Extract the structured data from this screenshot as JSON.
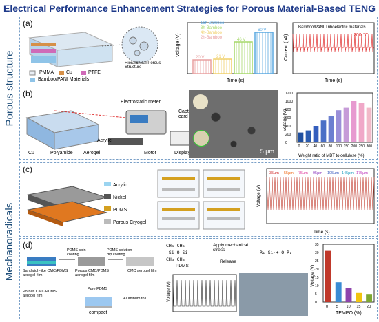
{
  "header": {
    "title": "Electrical Performance Enhancement Strategies for Porous Material-Based TENG"
  },
  "sections": {
    "porous": "Porous structure",
    "mech": "Mechanoradicals"
  },
  "panel_a": {
    "label": "(a)",
    "legend": [
      "PMMA",
      "Cu",
      "PTFE",
      "Bamboo/PANI Materials"
    ],
    "hier": "Hierarchical Porous Structure",
    "bar_ylabel": "Voltage (V)",
    "bar_xlabel": "Time (s)",
    "bar_legend": [
      "16h-Bamboo",
      "8h-Bamboo",
      "4h-Bamboo",
      "2h-Bamboo"
    ],
    "bar_vals": [
      "20 V",
      "21 V",
      "46 V",
      "60 V"
    ],
    "curr_legend": "Bamboo/PANI Triboelectric materials",
    "curr_ylabel": "Current (uA)",
    "curr_xlabel": "Time (s)",
    "curr_temp": "200 ℃",
    "curr_xticks": [
      "8",
      "12",
      "16",
      "20",
      "24",
      "28"
    ],
    "curr_yticks": [
      "2",
      "1",
      "0",
      "-1"
    ]
  },
  "panel_b": {
    "label": "(b)",
    "meter": "Electrostatic meter",
    "capture": "Capture card",
    "acrylic": "Acrylic",
    "cu": "Cu",
    "polyamide": "Polyamide",
    "aerogel": "Aerogel",
    "motor": "Motor",
    "display": "Display",
    "scale": "5 μm",
    "chart_ylabel": "Voltage (V)",
    "chart_xlabel": "Weight ratio of MBT to cellulose (%)"
  },
  "panel_c": {
    "label": "(c)",
    "legend": [
      "Acrylic",
      "Nickel",
      "PDMS",
      "Porous Cryogel"
    ],
    "chart_ylabel": "Voltage (V)",
    "chart_xlabel": "Time (s)",
    "speeds": [
      "35μm",
      "55μm",
      "75μm",
      "95μm",
      "105μm",
      "145μm",
      "175μm"
    ],
    "xticks": [
      "0",
      "1",
      "2",
      "3",
      "4",
      "5",
      "6",
      "7"
    ],
    "yticks": [
      "100",
      "80",
      "60",
      "40",
      "20",
      "0",
      "-20",
      "-40",
      "-60",
      "-80"
    ]
  },
  "panel_d": {
    "label": "(d)",
    "pdms_spin": "PDMS spin coating",
    "pdms_dip": "PDMS solution dip coating",
    "sandwich": "Sandwich-like CMC/PDMS aerogel film",
    "porous_cmc": "Porous CMC/PDMS aerogel film",
    "cmc": "CMC aerogel film",
    "porous_cmc2": "Porous CMC/PDMS aerogel film",
    "pure": "Pure PDMS",
    "alu": "Aluminum foil",
    "compact": "compact",
    "stress": "Apply mechanical stress",
    "release": "Release",
    "pdms": "PDMS",
    "chart_ylabel": "Voltage (V)",
    "chart_xlabel": "TEMPO (%)",
    "volt_label": "Voltage (V)"
  },
  "chart_data": [
    {
      "type": "bar",
      "title": "",
      "xlabel": "Time (s)",
      "ylabel": "Voltage (V)",
      "series": [
        {
          "name": "2h-Bamboo",
          "values": [
            20
          ]
        },
        {
          "name": "4h-Bamboo",
          "values": [
            21
          ]
        },
        {
          "name": "8h-Bamboo",
          "values": [
            46
          ]
        },
        {
          "name": "16h-Bamboo",
          "values": [
            60
          ]
        }
      ],
      "ylim": [
        0,
        70
      ]
    },
    {
      "type": "bar",
      "title": "",
      "xlabel": "Weight ratio of MBT to cellulose (%)",
      "ylabel": "Voltage (V)",
      "categories": [
        "0",
        "20",
        "40",
        "60",
        "80",
        "100",
        "150",
        "200",
        "250",
        "300"
      ],
      "values": [
        240,
        290,
        400,
        530,
        650,
        780,
        840,
        1000,
        950,
        840
      ],
      "ylim": [
        0,
        1200
      ],
      "yticks": [
        "0",
        "200",
        "400",
        "600",
        "800",
        "1000",
        "1200"
      ],
      "colors": [
        "#1f4fa0",
        "#2a5bb0",
        "#345ebd",
        "#4a6fc6",
        "#6b7fd0",
        "#9a8fd8",
        "#c69bd8",
        "#e79ad0",
        "#f0a8c8",
        "#f2b9c8"
      ]
    },
    {
      "type": "bar",
      "title": "",
      "xlabel": "TEMPO (%)",
      "ylabel": "Voltage (V)",
      "categories": [
        "0",
        "5",
        "10",
        "15",
        "20"
      ],
      "values": [
        31,
        12,
        8.5,
        5.5,
        4.5
      ],
      "ylim": [
        0,
        35
      ],
      "yticks": [
        "0",
        "5",
        "10",
        "15",
        "20",
        "25",
        "30",
        "35"
      ],
      "colors": [
        "#c0392b",
        "#3a8bd4",
        "#8e44ad",
        "#f1c40f",
        "#7fa832"
      ]
    }
  ]
}
